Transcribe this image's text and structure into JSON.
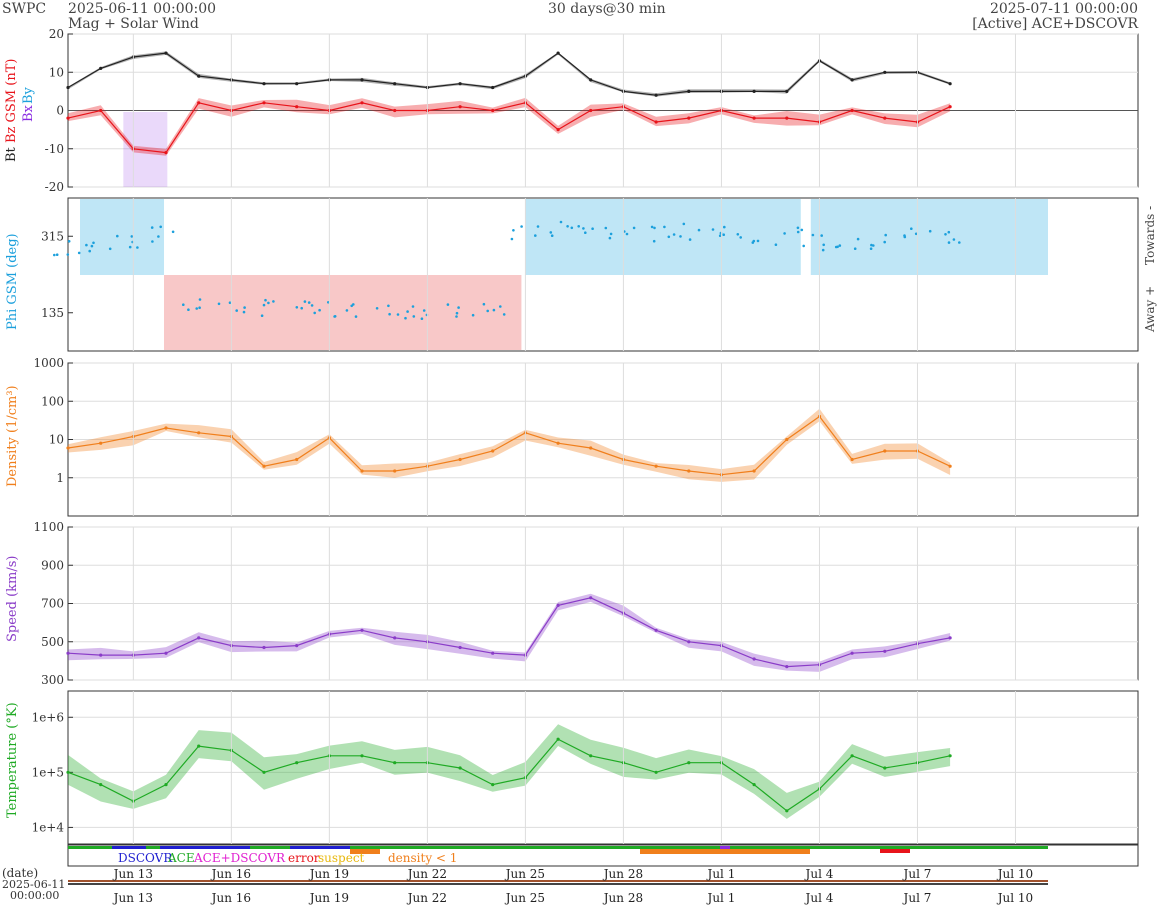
{
  "header": {
    "brand": "SWPC",
    "start_time": "2025-06-11 00:00:00",
    "subtitle": "Mag + Solar Wind",
    "resolution": "30 days@30 min",
    "end_time": "2025-07-11 00:00:00",
    "source": "[Active] ACE+DSCOVR"
  },
  "colors": {
    "bt": "#222222",
    "bz": "#e8141b",
    "bx": "#8a2be2",
    "by": "#1ca0dc",
    "phi_towards_band": "#bfe6f6",
    "phi_away_band": "#f8c8c8",
    "density": "#f07f1c",
    "speed": "#8a3cc8",
    "temperature": "#1faa24",
    "grid": "#dddddd"
  },
  "x_axis": {
    "start": "2025-06-11",
    "end": "2025-07-11",
    "tick_labels": [
      "Jun 13",
      "Jun 16",
      "Jun 19",
      "Jun 22",
      "Jun 25",
      "Jun 28",
      "Jul 1",
      "Jul 4",
      "Jul 7",
      "Jul 10"
    ],
    "date_label": "(date)",
    "date_start": "2025-06-11",
    "time_start": "00:00:00"
  },
  "legend": {
    "dscovr": "DSCOVR",
    "ace": "ACE",
    "ace_dscovr": "ACE+DSCOVR",
    "error": "error",
    "suspect": "suspect",
    "density_low": "density < 1"
  },
  "chart_data": [
    {
      "type": "line",
      "panel": "magnetic field",
      "ylabel_parts": [
        "Bt",
        "Bz GSM (nT)",
        "Bx",
        "By"
      ],
      "ylim": [
        -20,
        20
      ],
      "yticks": [
        -20,
        -10,
        0,
        10,
        20
      ],
      "grid": true,
      "series": [
        {
          "name": "Bt",
          "x": [
            "2025-06-11",
            "2025-06-12",
            "2025-06-13",
            "2025-06-14",
            "2025-06-15",
            "2025-06-16",
            "2025-06-17",
            "2025-06-18",
            "2025-06-19",
            "2025-06-20",
            "2025-06-21",
            "2025-06-22",
            "2025-06-23",
            "2025-06-24",
            "2025-06-25",
            "2025-06-26",
            "2025-06-27",
            "2025-06-28",
            "2025-06-29",
            "2025-06-30",
            "2025-07-01",
            "2025-07-02",
            "2025-07-03",
            "2025-07-04",
            "2025-07-05",
            "2025-07-06",
            "2025-07-07",
            "2025-07-08"
          ],
          "values": [
            6,
            11,
            14,
            15,
            9,
            8,
            7,
            7,
            8,
            8,
            7,
            6,
            7,
            6,
            9,
            15,
            8,
            5,
            4,
            5,
            5,
            5,
            5,
            13,
            8,
            10,
            10,
            7
          ]
        },
        {
          "name": "Bz GSM",
          "x": [
            "2025-06-11",
            "2025-06-12",
            "2025-06-13",
            "2025-06-14",
            "2025-06-15",
            "2025-06-16",
            "2025-06-17",
            "2025-06-18",
            "2025-06-19",
            "2025-06-20",
            "2025-06-21",
            "2025-06-22",
            "2025-06-23",
            "2025-06-24",
            "2025-06-25",
            "2025-06-26",
            "2025-06-27",
            "2025-06-28",
            "2025-06-29",
            "2025-06-30",
            "2025-07-01",
            "2025-07-02",
            "2025-07-03",
            "2025-07-04",
            "2025-07-05",
            "2025-07-06",
            "2025-07-07",
            "2025-07-08"
          ],
          "values": [
            -2,
            0,
            -10,
            -11,
            2,
            0,
            2,
            1,
            0,
            2,
            0,
            0,
            1,
            0,
            2,
            -5,
            0,
            1,
            -3,
            -2,
            0,
            -2,
            -2,
            -3,
            0,
            -2,
            -3,
            1
          ]
        }
      ]
    },
    {
      "type": "scatter",
      "panel": "phi",
      "ylabel": "Phi GSM (deg)",
      "right_labels": [
        "Towards -",
        "Away +"
      ],
      "yticks": [
        135,
        315
      ],
      "ylim": [
        45,
        405
      ],
      "series": [
        {
          "name": "Phi GSM",
          "x": [
            "2025-06-11",
            "2025-06-12",
            "2025-06-13",
            "2025-06-14",
            "2025-06-15",
            "2025-06-16",
            "2025-06-17",
            "2025-06-18",
            "2025-06-19",
            "2025-06-20",
            "2025-06-21",
            "2025-06-22",
            "2025-06-23",
            "2025-06-24",
            "2025-06-25",
            "2025-06-26",
            "2025-06-27",
            "2025-06-28",
            "2025-06-29",
            "2025-06-30",
            "2025-07-01",
            "2025-07-02",
            "2025-07-03",
            "2025-07-04",
            "2025-07-05",
            "2025-07-06",
            "2025-07-07",
            "2025-07-08"
          ],
          "values": [
            290,
            300,
            305,
            320,
            150,
            140,
            145,
            150,
            140,
            145,
            135,
            140,
            145,
            150,
            320,
            330,
            330,
            325,
            320,
            325,
            330,
            320,
            315,
            300,
            300,
            300,
            320,
            310
          ]
        }
      ]
    },
    {
      "type": "line",
      "panel": "density",
      "ylabel": "Density (1/cm³)",
      "log_scale": true,
      "ylim": [
        0.1,
        1000
      ],
      "yticks": [
        1,
        10,
        100,
        1000
      ],
      "series": [
        {
          "name": "Density",
          "x": [
            "2025-06-11",
            "2025-06-12",
            "2025-06-13",
            "2025-06-14",
            "2025-06-15",
            "2025-06-16",
            "2025-06-17",
            "2025-06-18",
            "2025-06-19",
            "2025-06-20",
            "2025-06-21",
            "2025-06-22",
            "2025-06-23",
            "2025-06-24",
            "2025-06-25",
            "2025-06-26",
            "2025-06-27",
            "2025-06-28",
            "2025-06-29",
            "2025-06-30",
            "2025-07-01",
            "2025-07-02",
            "2025-07-03",
            "2025-07-04",
            "2025-07-05",
            "2025-07-06",
            "2025-07-07",
            "2025-07-08"
          ],
          "values": [
            6,
            8,
            12,
            20,
            15,
            12,
            2,
            3,
            11,
            1.5,
            1.5,
            2,
            3,
            5,
            15,
            8,
            6,
            3,
            2,
            1.5,
            1.2,
            1.5,
            10,
            40,
            3,
            5,
            5,
            2
          ]
        }
      ]
    },
    {
      "type": "line",
      "panel": "speed",
      "ylabel": "Speed (km/s)",
      "ylim": [
        300,
        1100
      ],
      "yticks": [
        300,
        500,
        700,
        900,
        1100
      ],
      "series": [
        {
          "name": "Speed",
          "x": [
            "2025-06-11",
            "2025-06-12",
            "2025-06-13",
            "2025-06-14",
            "2025-06-15",
            "2025-06-16",
            "2025-06-17",
            "2025-06-18",
            "2025-06-19",
            "2025-06-20",
            "2025-06-21",
            "2025-06-22",
            "2025-06-23",
            "2025-06-24",
            "2025-06-25",
            "2025-06-26",
            "2025-06-27",
            "2025-06-28",
            "2025-06-29",
            "2025-06-30",
            "2025-07-01",
            "2025-07-02",
            "2025-07-03",
            "2025-07-04",
            "2025-07-05",
            "2025-07-06",
            "2025-07-07",
            "2025-07-08"
          ],
          "values": [
            440,
            430,
            430,
            440,
            520,
            480,
            470,
            480,
            540,
            560,
            520,
            500,
            470,
            440,
            430,
            690,
            730,
            650,
            560,
            500,
            480,
            410,
            370,
            380,
            440,
            450,
            490,
            520
          ]
        }
      ]
    },
    {
      "type": "line",
      "panel": "temperature",
      "ylabel": "Temperature (°K)",
      "log_scale": true,
      "ylim": [
        5000,
        3000000
      ],
      "yticks": [
        10000,
        100000,
        1000000
      ],
      "ytick_labels": [
        "1e+4",
        "1e+5",
        "1e+6"
      ],
      "series": [
        {
          "name": "Temperature",
          "x": [
            "2025-06-11",
            "2025-06-12",
            "2025-06-13",
            "2025-06-14",
            "2025-06-15",
            "2025-06-16",
            "2025-06-17",
            "2025-06-18",
            "2025-06-19",
            "2025-06-20",
            "2025-06-21",
            "2025-06-22",
            "2025-06-23",
            "2025-06-24",
            "2025-06-25",
            "2025-06-26",
            "2025-06-27",
            "2025-06-28",
            "2025-06-29",
            "2025-06-30",
            "2025-07-01",
            "2025-07-02",
            "2025-07-03",
            "2025-07-04",
            "2025-07-05",
            "2025-07-06",
            "2025-07-07",
            "2025-07-08"
          ],
          "values": [
            100000,
            60000,
            30000,
            60000,
            300000,
            250000,
            100000,
            150000,
            200000,
            200000,
            150000,
            150000,
            120000,
            60000,
            80000,
            400000,
            200000,
            150000,
            100000,
            150000,
            150000,
            60000,
            20000,
            50000,
            200000,
            120000,
            150000,
            200000
          ]
        }
      ]
    }
  ]
}
